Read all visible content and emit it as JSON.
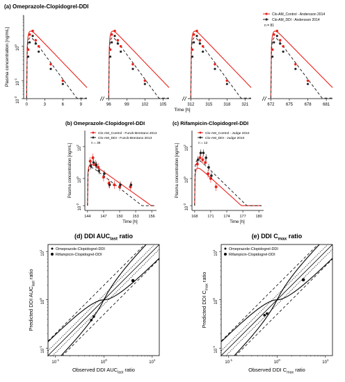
{
  "colors": {
    "control": "#e8221c",
    "ddi": "#222222",
    "axis": "#000000",
    "pred": "#000000"
  },
  "chart_data": [
    {
      "id": "a",
      "type": "line",
      "title": "(a) Omeprazole-Clopidogrel-DDI",
      "ylabel": "Plasma concentration  [ng/mL]",
      "xlabel": "Time [h]",
      "yscale": "log",
      "ylim": [
        0.03,
        8
      ],
      "ytick_labels": [
        "10",
        "10",
        "10"
      ],
      "ytick_exps": [
        "0",
        "-1",
        "-2"
      ],
      "segments": [
        {
          "xlim": [
            -0.5,
            10
          ],
          "ticks": [
            "0",
            "3",
            "6",
            "9"
          ]
        },
        {
          "xlim": [
            95.5,
            106
          ],
          "ticks": [
            "96",
            "99",
            "102",
            "105"
          ]
        },
        {
          "xlim": [
            311.5,
            322
          ],
          "ticks": [
            "312",
            "315",
            "318",
            "321"
          ]
        },
        {
          "xlim": [
            671.5,
            682
          ],
          "ticks": [
            "672",
            "675",
            "678",
            "681"
          ]
        }
      ],
      "legend": {
        "position": "top-right",
        "entries": [
          "Clo-AM_Control - Andersson 2014",
          "Clo-AM_DDI - Andersson 2014"
        ],
        "note": "n = 81"
      },
      "observed_control": [
        [
          0.25,
          0.8
        ],
        [
          0.5,
          2.2
        ],
        [
          1.0,
          2.8
        ],
        [
          1.5,
          1.5
        ],
        [
          2.0,
          1.0
        ],
        [
          4.0,
          0.3
        ],
        [
          6.0,
          0.1
        ]
      ],
      "observed_ddi": [
        [
          0.25,
          0.5
        ],
        [
          0.5,
          1.3
        ],
        [
          1.0,
          2.0
        ],
        [
          1.5,
          1.2
        ],
        [
          2.0,
          0.7
        ],
        [
          4.0,
          0.22
        ],
        [
          6.0,
          0.08
        ]
      ]
    },
    {
      "id": "b",
      "type": "line",
      "title": "(b) Omeprazole-Clopidogrel-DDI",
      "ylabel": "Plasma concentration  [ng/mL]",
      "xlabel": "Time [h]",
      "yscale": "log",
      "xlim": [
        143.5,
        156.5
      ],
      "ylim": [
        0.01,
        1000
      ],
      "xticks": [
        "144",
        "147",
        "150",
        "153",
        "156"
      ],
      "ytick_labels": [
        "10",
        "10",
        "10",
        "10"
      ],
      "ytick_exps": [
        "2",
        "0",
        "-2",
        "-4"
      ],
      "legend": {
        "position": "top-right",
        "entries": [
          "Clo-AM_Control - Funck-Brentano 2013",
          "Clo-AM_DDI - Funck-Brentano 2013"
        ],
        "note": "n = 36"
      },
      "observed_control": [
        [
          144.5,
          12
        ],
        [
          145.0,
          20
        ],
        [
          145.5,
          8
        ],
        [
          146.0,
          5
        ],
        [
          147.0,
          1.2
        ],
        [
          148.0,
          0.5
        ],
        [
          149.0,
          0.4
        ],
        [
          150.0,
          0.3
        ],
        [
          152.0,
          0.3
        ]
      ],
      "observed_ddi": [
        [
          144.5,
          6
        ],
        [
          145.0,
          10
        ],
        [
          145.5,
          7
        ],
        [
          146.0,
          3
        ],
        [
          147.0,
          2.0
        ],
        [
          148.0,
          0.4
        ],
        [
          150.0,
          0.4
        ],
        [
          152.0,
          0.4
        ]
      ]
    },
    {
      "id": "c",
      "type": "line",
      "title": "(c) Rifampicin-Clopidogrel-DDI",
      "ylabel": "Plasma concentration  [ng/mL]",
      "xlabel": "Time [h]",
      "yscale": "log",
      "xlim": [
        167.5,
        180.5
      ],
      "ylim": [
        0.01,
        1000
      ],
      "xticks": [
        "168",
        "171",
        "174",
        "177",
        "180"
      ],
      "ytick_labels": [
        "10",
        "10",
        "10",
        "10"
      ],
      "ytick_exps": [
        "2",
        "0",
        "-2",
        "-4"
      ],
      "legend": {
        "position": "top-right",
        "entries": [
          "Clo-AM_Control - Judge 2010",
          "Clo-AM_DDI - Judge 2010"
        ],
        "note": "n = 12"
      },
      "observed_control": [
        [
          168.5,
          8
        ],
        [
          169.0,
          20
        ],
        [
          169.5,
          15
        ],
        [
          170.0,
          10
        ],
        [
          170.5,
          2
        ],
        [
          171.0,
          1
        ],
        [
          172.0,
          0.3
        ]
      ],
      "observed_ddi": [
        [
          168.5,
          15
        ],
        [
          169.0,
          40
        ],
        [
          169.5,
          40
        ],
        [
          170.0,
          20
        ],
        [
          170.5,
          5
        ],
        [
          171.0,
          1.5
        ]
      ]
    },
    {
      "id": "d",
      "type": "scatter",
      "title": "(d) DDI AUC",
      "title_sub": "last",
      "title_tail": " ratio",
      "xlabel": "Observed DDI AUC",
      "xlabel_sub": "last",
      "xlabel_tail": " ratio",
      "ylabel": "Predicted DDI AUC",
      "ylabel_sub": "last",
      "ylabel_tail": " ratio",
      "xscale": "log",
      "yscale": "log",
      "xlim": [
        0.07,
        14
      ],
      "ylim": [
        0.07,
        14
      ],
      "xtick_labels": [
        "10",
        "10",
        "10"
      ],
      "xtick_exps": [
        "-1",
        "0",
        "1"
      ],
      "ytick_labels": [
        "10",
        "10",
        "10"
      ],
      "ytick_exps": [
        "-1",
        "0",
        "1"
      ],
      "legend": {
        "position": "top-left",
        "entries": [
          "Omeprazole-Clopidogrel-DDI",
          "Rifampicin-Clopidogrel-DDI"
        ]
      },
      "points": [
        {
          "series": "Omeprazole-Clopidogrel-DDI",
          "x": 0.55,
          "y": 0.38
        },
        {
          "series": "Omeprazole-Clopidogrel-DDI",
          "x": 0.62,
          "y": 0.45
        },
        {
          "series": "Rifampicin-Clopidogrel-DDI",
          "x": 4.0,
          "y": 2.5
        }
      ]
    },
    {
      "id": "e",
      "type": "scatter",
      "title": "(e) DDI C",
      "title_sub": "max",
      "title_tail": " ratio",
      "xlabel": "Observed DDI C",
      "xlabel_sub": "max",
      "xlabel_tail": " ratio",
      "ylabel": "Predicted DDI C",
      "ylabel_sub": "max",
      "ylabel_tail": " ratio",
      "xscale": "log",
      "yscale": "log",
      "xlim": [
        0.07,
        14
      ],
      "ylim": [
        0.07,
        14
      ],
      "xtick_labels": [
        "10",
        "10",
        "10"
      ],
      "xtick_exps": [
        "-1",
        "0",
        "1"
      ],
      "ytick_labels": [
        "10",
        "10",
        "10"
      ],
      "ytick_exps": [
        "-1",
        "0",
        "1"
      ],
      "legend": {
        "position": "top-left",
        "entries": [
          "Omeprazole-Clopidogrel-DDI",
          "Rifampicin-Clopidogrel-DDI"
        ]
      },
      "points": [
        {
          "series": "Omeprazole-Clopidogrel-DDI",
          "x": 0.55,
          "y": 0.48
        },
        {
          "series": "Omeprazole-Clopidogrel-DDI",
          "x": 0.62,
          "y": 0.52
        },
        {
          "series": "Rifampicin-Clopidogrel-DDI",
          "x": 3.5,
          "y": 2.6
        }
      ]
    }
  ]
}
